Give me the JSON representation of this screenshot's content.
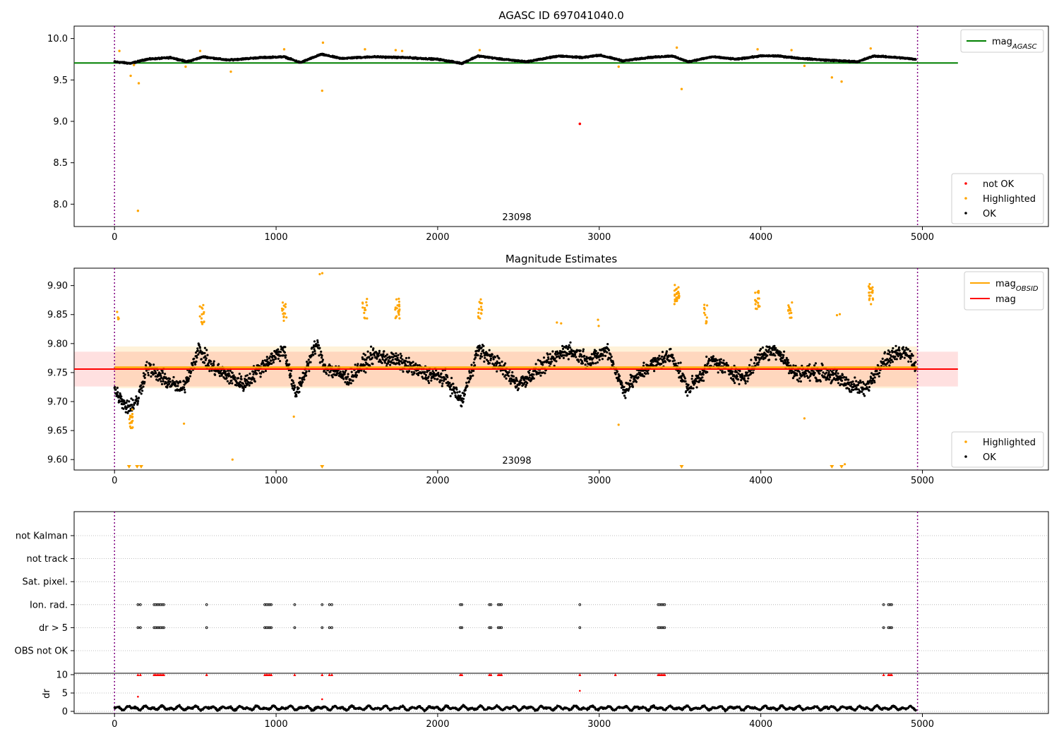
{
  "chart_data": [
    {
      "type": "scatter",
      "title": "AGASC ID 697041040.0",
      "obsid_label": "23098",
      "xlim": [
        -250,
        5780
      ],
      "ylim": [
        7.73,
        10.15
      ],
      "xticks": [
        "0",
        "1000",
        "2000",
        "3000",
        "4000",
        "5000"
      ],
      "yticks": [
        "8.0",
        "8.5",
        "9.0",
        "9.5",
        "10.0"
      ],
      "vlines": [
        0,
        4970
      ],
      "hline": {
        "label": "mag",
        "sub": "AGASC",
        "value": 9.705,
        "x_range": [
          -250,
          5220
        ],
        "color": "#008000"
      },
      "legend_lines": [
        {
          "label": "mag",
          "sub": "AGASC",
          "color": "#008000"
        }
      ],
      "legend_markers": [
        {
          "label": "not OK",
          "color": "#ff0000"
        },
        {
          "label": "Highlighted",
          "color": "#ffa500"
        },
        {
          "label": "OK",
          "color": "#000000"
        }
      ],
      "highlighted_points": [
        [
          30,
          9.85
        ],
        [
          100,
          9.55
        ],
        [
          120,
          9.68
        ],
        [
          150,
          9.46
        ],
        [
          145,
          7.92
        ],
        [
          440,
          9.66
        ],
        [
          530,
          9.85
        ],
        [
          720,
          9.6
        ],
        [
          1050,
          9.87
        ],
        [
          1290,
          9.95
        ],
        [
          1285,
          9.37
        ],
        [
          1550,
          9.87
        ],
        [
          1740,
          9.86
        ],
        [
          1780,
          9.85
        ],
        [
          2260,
          9.86
        ],
        [
          3120,
          9.66
        ],
        [
          3480,
          9.89
        ],
        [
          3510,
          9.39
        ],
        [
          3980,
          9.87
        ],
        [
          4190,
          9.86
        ],
        [
          4270,
          9.67
        ],
        [
          4440,
          9.53
        ],
        [
          4500,
          9.48
        ],
        [
          4680,
          9.88
        ]
      ],
      "not_ok_points": [
        [
          2880,
          8.97
        ]
      ],
      "ok_baseline": [
        [
          0,
          9.72
        ],
        [
          100,
          9.7
        ],
        [
          200,
          9.75
        ],
        [
          350,
          9.77
        ],
        [
          450,
          9.72
        ],
        [
          550,
          9.78
        ],
        [
          700,
          9.74
        ],
        [
          900,
          9.77
        ],
        [
          1050,
          9.78
        ],
        [
          1150,
          9.71
        ],
        [
          1280,
          9.81
        ],
        [
          1400,
          9.76
        ],
        [
          1600,
          9.78
        ],
        [
          1800,
          9.77
        ],
        [
          2000,
          9.75
        ],
        [
          2150,
          9.7
        ],
        [
          2250,
          9.79
        ],
        [
          2400,
          9.75
        ],
        [
          2550,
          9.72
        ],
        [
          2750,
          9.79
        ],
        [
          2900,
          9.77
        ],
        [
          3000,
          9.8
        ],
        [
          3150,
          9.73
        ],
        [
          3300,
          9.77
        ],
        [
          3450,
          9.79
        ],
        [
          3550,
          9.72
        ],
        [
          3700,
          9.78
        ],
        [
          3850,
          9.75
        ],
        [
          4000,
          9.79
        ],
        [
          4100,
          9.79
        ],
        [
          4250,
          9.76
        ],
        [
          4400,
          9.74
        ],
        [
          4600,
          9.72
        ],
        [
          4700,
          9.79
        ],
        [
          4850,
          9.77
        ],
        [
          4960,
          9.75
        ]
      ]
    },
    {
      "type": "scatter",
      "title": "Magnitude Estimates",
      "obsid_label": "23098",
      "xlim": [
        -250,
        5780
      ],
      "ylim": [
        9.582,
        9.93
      ],
      "xticks": [
        "0",
        "1000",
        "2000",
        "3000",
        "4000",
        "5000"
      ],
      "yticks": [
        "9.60",
        "9.65",
        "9.70",
        "9.75",
        "9.80",
        "9.85",
        "9.90"
      ],
      "vlines": [
        0,
        4970
      ],
      "mag_obsid": {
        "label": "mag",
        "sub": "OBSID",
        "value": 9.759,
        "band": [
          9.723,
          9.795
        ],
        "x_range": [
          0,
          4970
        ],
        "color": "#ffa500"
      },
      "mag": {
        "label": "mag",
        "value": 9.756,
        "band": [
          9.726,
          9.786
        ],
        "x_range": [
          -250,
          5220
        ],
        "color": "#ff0000"
      },
      "legend_lines": [
        {
          "label": "mag",
          "sub": "OBSID",
          "color": "#ffa500"
        },
        {
          "label": "mag",
          "color": "#ff0000"
        }
      ],
      "legend_markers": [
        {
          "label": "Highlighted",
          "color": "#ffa500"
        },
        {
          "label": "OK",
          "color": "#000000"
        }
      ],
      "highlighted_clusters": [
        [
          30,
          9.85,
          4
        ],
        [
          100,
          9.67,
          18
        ],
        [
          540,
          9.85,
          14
        ],
        [
          1050,
          9.855,
          14
        ],
        [
          1280,
          9.93,
          2
        ],
        [
          1550,
          9.86,
          14
        ],
        [
          1750,
          9.86,
          22
        ],
        [
          2260,
          9.86,
          14
        ],
        [
          2750,
          9.845,
          2
        ],
        [
          3000,
          9.84,
          2
        ],
        [
          3480,
          9.885,
          26
        ],
        [
          3660,
          9.85,
          12
        ],
        [
          3980,
          9.875,
          18
        ],
        [
          4180,
          9.86,
          12
        ],
        [
          4480,
          9.84,
          2
        ],
        [
          4680,
          9.885,
          22
        ]
      ],
      "highlighted_singles": [
        [
          430,
          9.662
        ],
        [
          730,
          9.6
        ],
        [
          1110,
          9.674
        ],
        [
          3120,
          9.66
        ],
        [
          4270,
          9.671
        ],
        [
          4520,
          9.592
        ]
      ],
      "clipped_low": [
        90,
        140,
        165,
        1285,
        3510,
        4440,
        4500
      ],
      "ok_baseline": [
        [
          0,
          9.72
        ],
        [
          80,
          9.69
        ],
        [
          140,
          9.7
        ],
        [
          200,
          9.76
        ],
        [
          300,
          9.74
        ],
        [
          420,
          9.72
        ],
        [
          520,
          9.79
        ],
        [
          600,
          9.76
        ],
        [
          800,
          9.73
        ],
        [
          950,
          9.77
        ],
        [
          1050,
          9.79
        ],
        [
          1120,
          9.71
        ],
        [
          1250,
          9.8
        ],
        [
          1300,
          9.76
        ],
        [
          1450,
          9.74
        ],
        [
          1600,
          9.78
        ],
        [
          1750,
          9.77
        ],
        [
          1900,
          9.75
        ],
        [
          2050,
          9.74
        ],
        [
          2150,
          9.7
        ],
        [
          2250,
          9.79
        ],
        [
          2350,
          9.77
        ],
        [
          2500,
          9.73
        ],
        [
          2650,
          9.76
        ],
        [
          2800,
          9.79
        ],
        [
          2950,
          9.77
        ],
        [
          3050,
          9.79
        ],
        [
          3150,
          9.72
        ],
        [
          3300,
          9.76
        ],
        [
          3450,
          9.78
        ],
        [
          3550,
          9.72
        ],
        [
          3700,
          9.77
        ],
        [
          3900,
          9.74
        ],
        [
          4000,
          9.78
        ],
        [
          4100,
          9.79
        ],
        [
          4200,
          9.75
        ],
        [
          4400,
          9.75
        ],
        [
          4550,
          9.73
        ],
        [
          4650,
          9.72
        ],
        [
          4750,
          9.77
        ],
        [
          4900,
          9.79
        ],
        [
          4960,
          9.76
        ]
      ]
    },
    {
      "type": "scatter",
      "title": "",
      "xlim": [
        -250,
        5780
      ],
      "xticks": [
        "0",
        "1000",
        "2000",
        "3000",
        "4000",
        "5000"
      ],
      "vlines": [
        0,
        4970
      ],
      "flag_rows": [
        "not Kalman",
        "not track",
        "Sat. pixel.",
        "Ion. rad.",
        "dr > 5",
        "OBS not OK"
      ],
      "flag_times": [
        145,
        160,
        245,
        255,
        265,
        275,
        285,
        295,
        305,
        570,
        930,
        940,
        950,
        960,
        970,
        1115,
        1285,
        1330,
        1345,
        2140,
        2150,
        2320,
        2330,
        2375,
        2385,
        2395,
        2880,
        3365,
        3375,
        3385,
        3395,
        3405,
        4760,
        4790,
        4800,
        4810
      ],
      "flag_rows_marked": [
        "Ion. rad.",
        "dr > 5"
      ],
      "dr_ylabel": "dr",
      "dr_ylim": [
        -0.5,
        10.5
      ],
      "dr_yticks": [
        "0",
        "5",
        "10"
      ],
      "dr_clipped_at_10": [
        145,
        160,
        245,
        255,
        265,
        275,
        285,
        295,
        305,
        570,
        930,
        940,
        950,
        960,
        970,
        1115,
        1285,
        1330,
        1345,
        2140,
        2150,
        2320,
        2330,
        2375,
        2385,
        2395,
        2880,
        3100,
        3365,
        3375,
        3385,
        3395,
        3405,
        4760,
        4790,
        4800,
        4810
      ],
      "dr_outliers": [
        [
          145,
          4.0
        ],
        [
          1285,
          3.3
        ],
        [
          2880,
          5.6
        ]
      ]
    }
  ]
}
